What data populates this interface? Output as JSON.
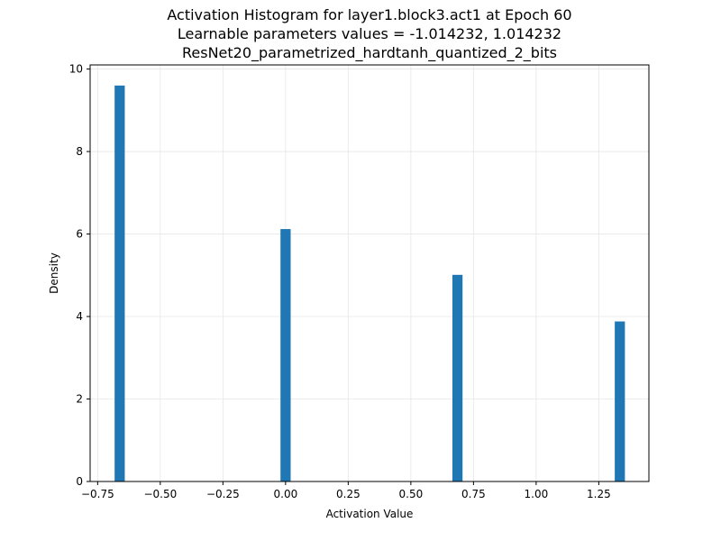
{
  "chart_data": {
    "type": "bar",
    "title_lines": [
      "Activation Histogram for layer1.block3.act1 at Epoch 60",
      "Learnable parameters values = -1.014232, 1.014232",
      "ResNet20_parametrized_hardtanh_quantized_2_bits"
    ],
    "xlabel": "Activation Value",
    "ylabel": "Density",
    "xlim": [
      -0.78,
      1.45
    ],
    "ylim": [
      0,
      10.1
    ],
    "xticks": [
      -0.75,
      -0.5,
      -0.25,
      0.0,
      0.25,
      0.5,
      0.75,
      1.0,
      1.25
    ],
    "xtick_labels": [
      "−0.75",
      "−0.50",
      "−0.25",
      "0.00",
      "0.25",
      "0.50",
      "0.75",
      "1.00",
      "1.25"
    ],
    "yticks": [
      0,
      2,
      4,
      6,
      8,
      10
    ],
    "ytick_labels": [
      "0",
      "2",
      "4",
      "6",
      "8",
      "10"
    ],
    "grid": true,
    "bin_width": 0.0405,
    "bars": [
      {
        "x": -0.662,
        "value": 9.6
      },
      {
        "x": 0.0,
        "value": 6.12
      },
      {
        "x": 0.686,
        "value": 5.01
      },
      {
        "x": 1.334,
        "value": 3.88
      }
    ],
    "bar_color": "#1f77b4"
  }
}
